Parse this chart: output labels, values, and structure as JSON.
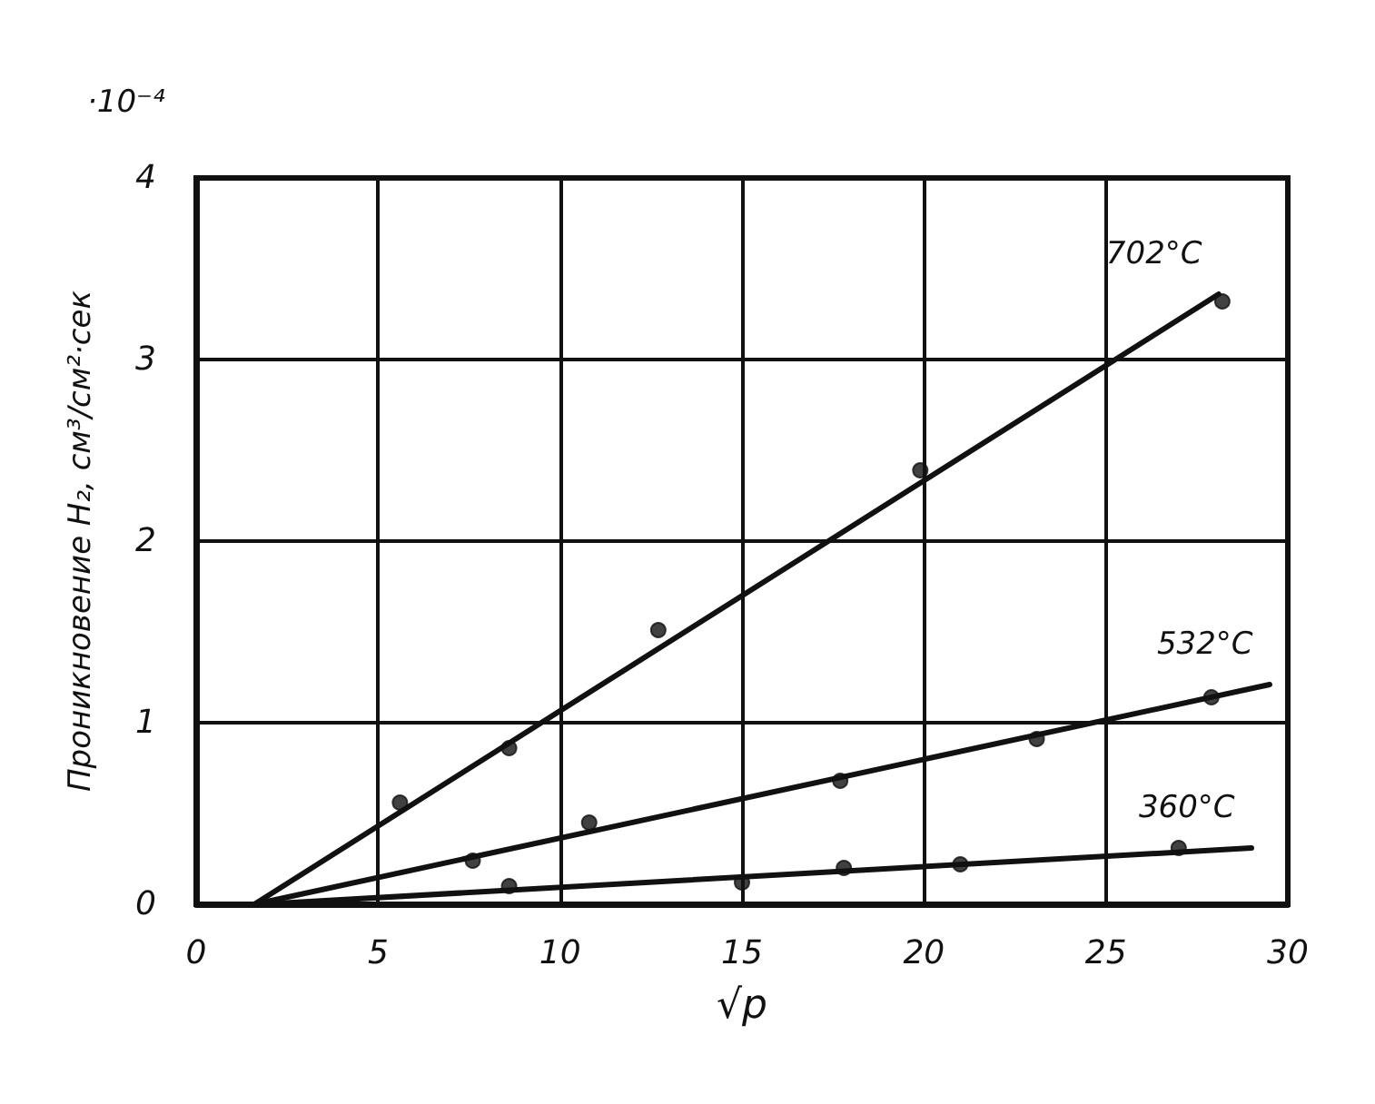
{
  "chart_data": {
    "type": "scatter",
    "xlabel": "√p",
    "ylabel": "Проникновение H₂, см³/см²·сек",
    "annotations": [
      "·10⁻⁴"
    ],
    "xlim": [
      0,
      30
    ],
    "xticks": [
      0,
      5,
      10,
      15,
      20,
      25,
      30
    ],
    "ylim": [
      0,
      4
    ],
    "yticks": [
      0,
      1,
      2,
      3,
      4
    ],
    "grid": true,
    "legend": false,
    "series": [
      {
        "color": "#111111",
        "marker": "circle",
        "x": [
          5.6,
          8.6,
          12.7,
          19.9,
          28.2
        ],
        "values": [
          0.56,
          0.86,
          1.51,
          2.39,
          3.32
        ]
      },
      {
        "color": "#111111",
        "marker": "circle",
        "x": [
          7.6,
          10.8,
          17.7,
          23.1,
          27.9
        ],
        "values": [
          0.24,
          0.45,
          0.68,
          0.91,
          1.14
        ]
      },
      {
        "color": "#111111",
        "marker": "circle",
        "x": [
          8.6,
          15.0,
          17.8,
          21.0,
          27.0
        ],
        "values": [
          0.1,
          0.12,
          0.2,
          0.22,
          0.31
        ]
      },
      {
        "type": "line",
        "name": "702°C",
        "color": "#111111",
        "marker": "none",
        "line_style": "solid",
        "x": [
          1.6,
          28.1
        ],
        "values": [
          0,
          3.36
        ]
      },
      {
        "type": "line",
        "name": "532°C",
        "color": "#111111",
        "marker": "none",
        "line_style": "solid",
        "x": [
          1.6,
          29.5
        ],
        "values": [
          0,
          1.21
        ]
      },
      {
        "type": "line",
        "name": "360°C",
        "color": "#111111",
        "marker": "none",
        "line_style": "solid",
        "x": [
          1.8,
          29.0
        ],
        "values": [
          0,
          0.31
        ]
      }
    ]
  }
}
